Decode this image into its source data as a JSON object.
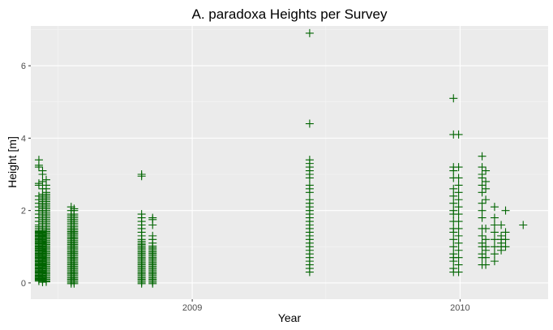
{
  "chart_data": {
    "type": "scatter",
    "title": "A. paradoxa Heights per Survey",
    "xlabel": "Year",
    "ylabel": "Height [m]",
    "x_axis_type": "date",
    "xlim": [
      "2008-05-26",
      "2010-05-01"
    ],
    "ylim": [
      -0.45,
      7.1
    ],
    "x_ticks": [
      {
        "value": "2009-01-01",
        "label": "2009"
      },
      {
        "value": "2010-01-01",
        "label": "2010"
      }
    ],
    "y_ticks": [
      {
        "value": 0,
        "label": "0"
      },
      {
        "value": 2,
        "label": "2"
      },
      {
        "value": 4,
        "label": "4"
      },
      {
        "value": 6,
        "label": "6"
      }
    ],
    "grid": true,
    "marker": "plus",
    "colors": {
      "points": "#006400",
      "panel_background": "#ebebeb",
      "grid_major": "#ffffff",
      "grid_minor": "#f5f5f5"
    },
    "surveys": [
      {
        "date": "2008-06-06",
        "heights": [
          0.05,
          0.08,
          0.1,
          0.12,
          0.15,
          0.15,
          0.18,
          0.2,
          0.22,
          0.25,
          0.28,
          0.3,
          0.32,
          0.35,
          0.38,
          0.4,
          0.42,
          0.45,
          0.48,
          0.5,
          0.52,
          0.55,
          0.58,
          0.6,
          0.62,
          0.65,
          0.68,
          0.7,
          0.72,
          0.75,
          0.78,
          0.8,
          0.82,
          0.85,
          0.88,
          0.9,
          0.92,
          0.95,
          0.98,
          1.0,
          1.02,
          1.05,
          1.08,
          1.1,
          1.12,
          1.15,
          1.18,
          1.2,
          1.22,
          1.25,
          1.28,
          1.3,
          1.32,
          1.35,
          1.38,
          1.4,
          1.42,
          1.45,
          1.5,
          1.55,
          1.6,
          1.7,
          1.8,
          1.9,
          2.0,
          2.1,
          2.2,
          2.3,
          2.4,
          2.7,
          2.75,
          3.2,
          3.25,
          3.4
        ]
      },
      {
        "date": "2008-06-11",
        "heights": [
          0.02,
          0.05,
          0.08,
          0.1,
          0.12,
          0.15,
          0.18,
          0.2,
          0.22,
          0.25,
          0.28,
          0.3,
          0.32,
          0.35,
          0.38,
          0.4,
          0.42,
          0.45,
          0.48,
          0.5,
          0.52,
          0.55,
          0.58,
          0.6,
          0.62,
          0.65,
          0.68,
          0.7,
          0.72,
          0.75,
          0.78,
          0.8,
          0.82,
          0.85,
          0.88,
          0.9,
          0.92,
          0.95,
          0.98,
          1.0,
          1.02,
          1.05,
          1.08,
          1.1,
          1.12,
          1.15,
          1.18,
          1.2,
          1.22,
          1.25,
          1.28,
          1.3,
          1.32,
          1.35,
          1.38,
          1.4,
          1.45,
          1.5,
          1.55,
          1.6,
          1.65,
          1.7,
          1.75,
          1.8,
          1.85,
          1.9,
          1.95,
          2.0,
          2.05,
          2.1,
          2.15,
          2.2,
          2.25,
          2.3,
          2.35,
          2.4,
          2.45,
          2.6,
          2.8,
          3.0,
          3.1
        ]
      },
      {
        "date": "2008-06-16",
        "heights": [
          0.03,
          0.06,
          0.1,
          0.14,
          0.18,
          0.22,
          0.26,
          0.3,
          0.34,
          0.38,
          0.42,
          0.46,
          0.5,
          0.54,
          0.58,
          0.62,
          0.66,
          0.7,
          0.74,
          0.78,
          0.82,
          0.86,
          0.9,
          0.94,
          0.98,
          1.02,
          1.06,
          1.1,
          1.14,
          1.18,
          1.22,
          1.26,
          1.3,
          1.34,
          1.38,
          1.42,
          1.46,
          1.5,
          1.55,
          1.6,
          1.65,
          1.7,
          1.75,
          1.8,
          1.85,
          1.9,
          1.95,
          2.0,
          2.05,
          2.1,
          2.15,
          2.2,
          2.25,
          2.3,
          2.35,
          2.4,
          2.45,
          2.5,
          2.6,
          2.7,
          2.85
        ]
      },
      {
        "date": "2008-07-20",
        "heights": [
          -0.02,
          0.02,
          0.06,
          0.1,
          0.14,
          0.18,
          0.22,
          0.26,
          0.3,
          0.34,
          0.38,
          0.42,
          0.46,
          0.5,
          0.54,
          0.58,
          0.62,
          0.66,
          0.7,
          0.74,
          0.78,
          0.82,
          0.86,
          0.9,
          0.94,
          0.98,
          1.02,
          1.06,
          1.1,
          1.14,
          1.18,
          1.22,
          1.26,
          1.3,
          1.34,
          1.38,
          1.42,
          1.46,
          1.5,
          1.55,
          1.6,
          1.65,
          1.7,
          1.75,
          1.8,
          1.85,
          1.9,
          2.0,
          2.1
        ]
      },
      {
        "date": "2008-07-24",
        "heights": [
          -0.02,
          0.02,
          0.06,
          0.1,
          0.14,
          0.18,
          0.22,
          0.26,
          0.3,
          0.34,
          0.38,
          0.42,
          0.46,
          0.5,
          0.54,
          0.58,
          0.62,
          0.66,
          0.7,
          0.74,
          0.78,
          0.82,
          0.86,
          0.9,
          0.94,
          0.98,
          1.02,
          1.06,
          1.1,
          1.14,
          1.18,
          1.22,
          1.26,
          1.3,
          1.34,
          1.38,
          1.42,
          1.46,
          1.5,
          1.55,
          1.6,
          1.65,
          1.7,
          1.75,
          1.8,
          1.85,
          1.9,
          2.0,
          2.05
        ]
      },
      {
        "date": "2008-10-24",
        "heights": [
          -0.02,
          0.02,
          0.06,
          0.1,
          0.14,
          0.18,
          0.22,
          0.26,
          0.3,
          0.34,
          0.38,
          0.42,
          0.46,
          0.5,
          0.54,
          0.58,
          0.62,
          0.66,
          0.7,
          0.74,
          0.78,
          0.82,
          0.86,
          0.9,
          0.94,
          0.98,
          1.02,
          1.06,
          1.1,
          1.15,
          1.2,
          1.3,
          1.4,
          1.5,
          1.6,
          1.7,
          1.8,
          1.9,
          2.95,
          3.0
        ]
      },
      {
        "date": "2008-11-08",
        "heights": [
          -0.02,
          0.02,
          0.06,
          0.1,
          0.14,
          0.18,
          0.22,
          0.26,
          0.3,
          0.34,
          0.38,
          0.42,
          0.46,
          0.5,
          0.54,
          0.58,
          0.62,
          0.66,
          0.7,
          0.74,
          0.78,
          0.82,
          0.86,
          0.9,
          0.94,
          0.98,
          1.02,
          1.1,
          1.2,
          1.3,
          1.6,
          1.75,
          1.8
        ]
      },
      {
        "date": "2009-06-10",
        "heights": [
          0.3,
          0.4,
          0.5,
          0.6,
          0.7,
          0.8,
          0.9,
          1.0,
          1.1,
          1.2,
          1.3,
          1.4,
          1.5,
          1.6,
          1.7,
          1.8,
          1.9,
          2.0,
          2.1,
          2.2,
          2.3,
          2.5,
          2.6,
          2.7,
          2.9,
          3.0,
          3.1,
          3.2,
          3.3,
          3.4,
          4.4,
          6.9
        ]
      },
      {
        "date": "2009-12-23",
        "heights": [
          0.3,
          0.4,
          0.6,
          0.7,
          0.8,
          1.0,
          1.2,
          1.4,
          1.5,
          1.7,
          1.9,
          2.0,
          2.2,
          2.4,
          2.6,
          2.9,
          3.1,
          3.2,
          4.1,
          5.1
        ]
      },
      {
        "date": "2009-12-30",
        "heights": [
          0.3,
          0.5,
          0.7,
          0.9,
          1.1,
          1.3,
          1.5,
          1.7,
          1.9,
          2.1,
          2.3,
          2.5,
          2.7,
          2.9,
          3.2,
          4.1
        ]
      },
      {
        "date": "2010-01-31",
        "heights": [
          0.5,
          0.7,
          0.8,
          1.0,
          1.1,
          1.3,
          1.5,
          1.8,
          2.0,
          2.2,
          2.5,
          2.7,
          2.9,
          3.0,
          3.2,
          3.5
        ]
      },
      {
        "date": "2010-02-05",
        "heights": [
          0.5,
          0.7,
          0.9,
          1.0,
          1.2,
          1.5,
          2.3,
          2.6,
          2.8,
          3.1
        ]
      },
      {
        "date": "2010-02-17",
        "heights": [
          0.6,
          0.8,
          1.0,
          1.2,
          1.4,
          1.6,
          1.8,
          2.1
        ]
      },
      {
        "date": "2010-02-26",
        "heights": [
          0.9,
          1.0,
          1.1,
          1.2,
          1.3,
          1.6
        ]
      },
      {
        "date": "2010-03-04",
        "heights": [
          1.0,
          1.2,
          1.4,
          2.0
        ]
      },
      {
        "date": "2010-03-28",
        "heights": [
          1.6
        ]
      }
    ]
  }
}
